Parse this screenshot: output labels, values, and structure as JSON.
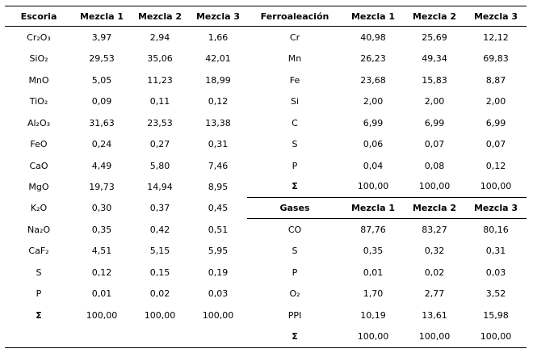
{
  "escoria": {
    "headers": [
      "Escoria",
      "Mezcla 1",
      "Mezcla 2",
      "Mezcla 3"
    ],
    "rows": [
      [
        "Cr₂O₃",
        "3,97",
        "2,94",
        "1,66"
      ],
      [
        "SiO₂",
        "29,53",
        "35,06",
        "42,01"
      ],
      [
        "MnO",
        "5,05",
        "11,23",
        "18,99"
      ],
      [
        "TiO₂",
        "0,09",
        "0,11",
        "0,12"
      ],
      [
        "Al₂O₃",
        "31,63",
        "23,53",
        "13,38"
      ],
      [
        "FeO",
        "0,24",
        "0,27",
        "0,31"
      ],
      [
        "CaO",
        "4,49",
        "5,80",
        "7,46"
      ],
      [
        "MgO",
        "19,73",
        "14,94",
        "8,95"
      ],
      [
        "K₂O",
        "0,30",
        "0,37",
        "0,45"
      ],
      [
        "Na₂O",
        "0,35",
        "0,42",
        "0,51"
      ],
      [
        "CaF₂",
        "4,51",
        "5,15",
        "5,95"
      ],
      [
        "S",
        "0,12",
        "0,15",
        "0,19"
      ],
      [
        "P",
        "0,01",
        "0,02",
        "0,03"
      ],
      [
        "Σ",
        "100,00",
        "100,00",
        "100,00"
      ]
    ]
  },
  "ferroaleacion": {
    "headers": [
      "Ferroaleación",
      "Mezcla 1",
      "Mezcla 2",
      "Mezcla 3"
    ],
    "rows": [
      [
        "Cr",
        "40,98",
        "25,69",
        "12,12"
      ],
      [
        "Mn",
        "26,23",
        "49,34",
        "69,83"
      ],
      [
        "Fe",
        "23,68",
        "15,83",
        "8,87"
      ],
      [
        "Si",
        "2,00",
        "2,00",
        "2,00"
      ],
      [
        "C",
        "6,99",
        "6,99",
        "6,99"
      ],
      [
        "S",
        "0,06",
        "0,07",
        "0,07"
      ],
      [
        "P",
        "0,04",
        "0,08",
        "0,12"
      ],
      [
        "Σ",
        "100,00",
        "100,00",
        "100,00"
      ]
    ]
  },
  "gases": {
    "headers": [
      "Gases",
      "Mezcla 1",
      "Mezcla 2",
      "Mezcla 3"
    ],
    "rows": [
      [
        "CO",
        "87,76",
        "83,27",
        "80,16"
      ],
      [
        "S",
        "0,35",
        "0,32",
        "0,31"
      ],
      [
        "P",
        "0,01",
        "0,02",
        "0,03"
      ],
      [
        "O₂",
        "1,70",
        "2,77",
        "3,52"
      ],
      [
        "PPI",
        "10,19",
        "13,61",
        "15,98"
      ],
      [
        "Σ",
        "100,00",
        "100,00",
        "100,00"
      ]
    ]
  }
}
